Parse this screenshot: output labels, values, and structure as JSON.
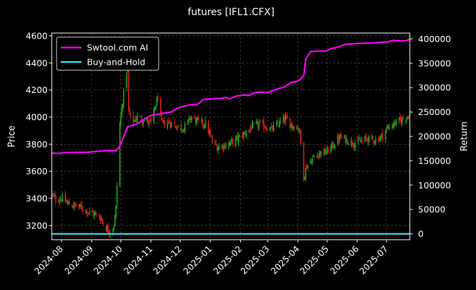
{
  "chart_data": {
    "type": "line",
    "title": "futures [IFL1.CFX]",
    "ylabel_left": "Price",
    "ylabel_right": "Return",
    "grid": true,
    "legend_position": "top-left",
    "colors": {
      "background": "#000000",
      "candle_up": "#1a9e1a",
      "candle_down": "#d01818",
      "strategy_line": "#ff00ff",
      "benchmark_line": "#33e0e6"
    },
    "x_tick_labels": [
      "2024-08",
      "2024-09",
      "2024-10",
      "2024-11",
      "2024-12",
      "2025-01",
      "2025-02",
      "2025-03",
      "2025-04",
      "2025-05",
      "2025-06",
      "2025-07"
    ],
    "x_tick_dates": [
      "2024-08-01",
      "2024-09-01",
      "2024-10-01",
      "2024-11-01",
      "2024-12-01",
      "2025-01-01",
      "2025-02-01",
      "2025-03-01",
      "2025-04-01",
      "2025-05-01",
      "2025-06-01",
      "2025-07-01"
    ],
    "x_range": [
      "2024-07-22",
      "2025-07-25"
    ],
    "left_axis": {
      "ticks": [
        3200,
        3400,
        3600,
        3800,
        4000,
        4200,
        4400,
        4600
      ],
      "range": [
        3095,
        4620
      ]
    },
    "right_axis": {
      "ticks": [
        0,
        50000,
        100000,
        150000,
        200000,
        250000,
        300000,
        350000,
        400000
      ],
      "range": [
        -12000,
        412000
      ]
    },
    "legend": [
      {
        "name": "Swtool.com AI",
        "color": "#ff00ff"
      },
      {
        "name": "Buy-and-Hold",
        "color": "#33e0e6"
      }
    ],
    "price_path": [
      [
        "2024-07-22",
        3420
      ],
      [
        "2024-07-26",
        3395
      ],
      [
        "2024-08-01",
        3400
      ],
      [
        "2024-08-08",
        3360
      ],
      [
        "2024-08-15",
        3345
      ],
      [
        "2024-08-22",
        3330
      ],
      [
        "2024-08-29",
        3300
      ],
      [
        "2024-09-05",
        3280
      ],
      [
        "2024-09-11",
        3250
      ],
      [
        "2024-09-16",
        3180
      ],
      [
        "2024-09-20",
        3160
      ],
      [
        "2024-09-24",
        3200
      ],
      [
        "2024-09-26",
        3330
      ],
      [
        "2024-09-27",
        3500
      ],
      [
        "2024-09-30",
        3950
      ],
      [
        "2024-10-08",
        4400
      ],
      [
        "2024-10-09",
        4050
      ],
      [
        "2024-10-12",
        3950
      ],
      [
        "2024-10-18",
        4000
      ],
      [
        "2024-10-25",
        3980
      ],
      [
        "2024-11-01",
        3950
      ],
      [
        "2024-11-08",
        4150
      ],
      [
        "2024-11-12",
        3950
      ],
      [
        "2024-11-20",
        3960
      ],
      [
        "2024-11-28",
        3930
      ],
      [
        "2024-12-05",
        3920
      ],
      [
        "2024-12-12",
        4000
      ],
      [
        "2024-12-20",
        3960
      ],
      [
        "2024-12-27",
        3950
      ],
      [
        "2025-01-03",
        3820
      ],
      [
        "2025-01-08",
        3780
      ],
      [
        "2025-01-15",
        3790
      ],
      [
        "2025-01-22",
        3810
      ],
      [
        "2025-01-27",
        3830
      ],
      [
        "2025-02-05",
        3880
      ],
      [
        "2025-02-12",
        3920
      ],
      [
        "2025-02-20",
        3950
      ],
      [
        "2025-02-27",
        3930
      ],
      [
        "2025-03-05",
        3910
      ],
      [
        "2025-03-12",
        3950
      ],
      [
        "2025-03-19",
        3990
      ],
      [
        "2025-03-26",
        3940
      ],
      [
        "2025-04-02",
        3920
      ],
      [
        "2025-04-03",
        3880
      ],
      [
        "2025-04-07",
        3560
      ],
      [
        "2025-04-10",
        3640
      ],
      [
        "2025-04-17",
        3700
      ],
      [
        "2025-04-24",
        3740
      ],
      [
        "2025-04-30",
        3740
      ],
      [
        "2025-05-07",
        3790
      ],
      [
        "2025-05-14",
        3850
      ],
      [
        "2025-05-21",
        3830
      ],
      [
        "2025-05-28",
        3810
      ],
      [
        "2025-06-04",
        3820
      ],
      [
        "2025-06-11",
        3840
      ],
      [
        "2025-06-18",
        3830
      ],
      [
        "2025-06-25",
        3850
      ],
      [
        "2025-07-02",
        3920
      ],
      [
        "2025-07-09",
        3950
      ],
      [
        "2025-07-16",
        3980
      ],
      [
        "2025-07-25",
        4020
      ]
    ],
    "series": [
      {
        "name": "Swtool.com AI",
        "axis": "right",
        "points": [
          [
            "2024-07-22",
            166000
          ],
          [
            "2024-07-29",
            165000
          ],
          [
            "2024-08-05",
            167000
          ],
          [
            "2024-08-15",
            167000
          ],
          [
            "2024-08-28",
            167500
          ],
          [
            "2024-09-05",
            169000
          ],
          [
            "2024-09-12",
            170000
          ],
          [
            "2024-09-18",
            171000
          ],
          [
            "2024-09-26",
            170000
          ],
          [
            "2024-09-30",
            180000
          ],
          [
            "2024-10-08",
            220000
          ],
          [
            "2024-10-17",
            225000
          ],
          [
            "2024-10-25",
            235000
          ],
          [
            "2024-11-01",
            243000
          ],
          [
            "2024-11-06",
            245000
          ],
          [
            "2024-11-15",
            248000
          ],
          [
            "2024-11-22",
            250000
          ],
          [
            "2024-11-28",
            258000
          ],
          [
            "2024-12-05",
            262000
          ],
          [
            "2024-12-12",
            265000
          ],
          [
            "2024-12-19",
            266000
          ],
          [
            "2024-12-25",
            276000
          ],
          [
            "2025-01-03",
            277000
          ],
          [
            "2025-01-08",
            278000
          ],
          [
            "2025-01-13",
            278000
          ],
          [
            "2025-01-16",
            280000
          ],
          [
            "2025-01-21",
            277000
          ],
          [
            "2025-01-28",
            283000
          ],
          [
            "2025-02-05",
            285000
          ],
          [
            "2025-02-10",
            284000
          ],
          [
            "2025-02-15",
            290000
          ],
          [
            "2025-02-22",
            291000
          ],
          [
            "2025-03-01",
            290000
          ],
          [
            "2025-03-05",
            293000
          ],
          [
            "2025-03-12",
            298000
          ],
          [
            "2025-03-19",
            302000
          ],
          [
            "2025-03-24",
            310000
          ],
          [
            "2025-03-31",
            313000
          ],
          [
            "2025-04-03",
            316000
          ],
          [
            "2025-04-07",
            325000
          ],
          [
            "2025-04-09",
            358000
          ],
          [
            "2025-04-14",
            374000
          ],
          [
            "2025-04-20",
            375000
          ],
          [
            "2025-04-30",
            375000
          ],
          [
            "2025-05-05",
            380000
          ],
          [
            "2025-05-12",
            383000
          ],
          [
            "2025-05-20",
            389000
          ],
          [
            "2025-05-28",
            390000
          ],
          [
            "2025-06-05",
            391000
          ],
          [
            "2025-06-12",
            391500
          ],
          [
            "2025-06-19",
            392000
          ],
          [
            "2025-06-26",
            393000
          ],
          [
            "2025-07-02",
            394000
          ],
          [
            "2025-07-08",
            397000
          ],
          [
            "2025-07-15",
            396000
          ],
          [
            "2025-07-20",
            396000
          ],
          [
            "2025-07-25",
            399000
          ]
        ]
      },
      {
        "name": "Buy-and-Hold",
        "axis": "right",
        "points": [
          [
            "2024-07-22",
            0
          ],
          [
            "2025-07-25",
            0
          ]
        ]
      }
    ]
  }
}
